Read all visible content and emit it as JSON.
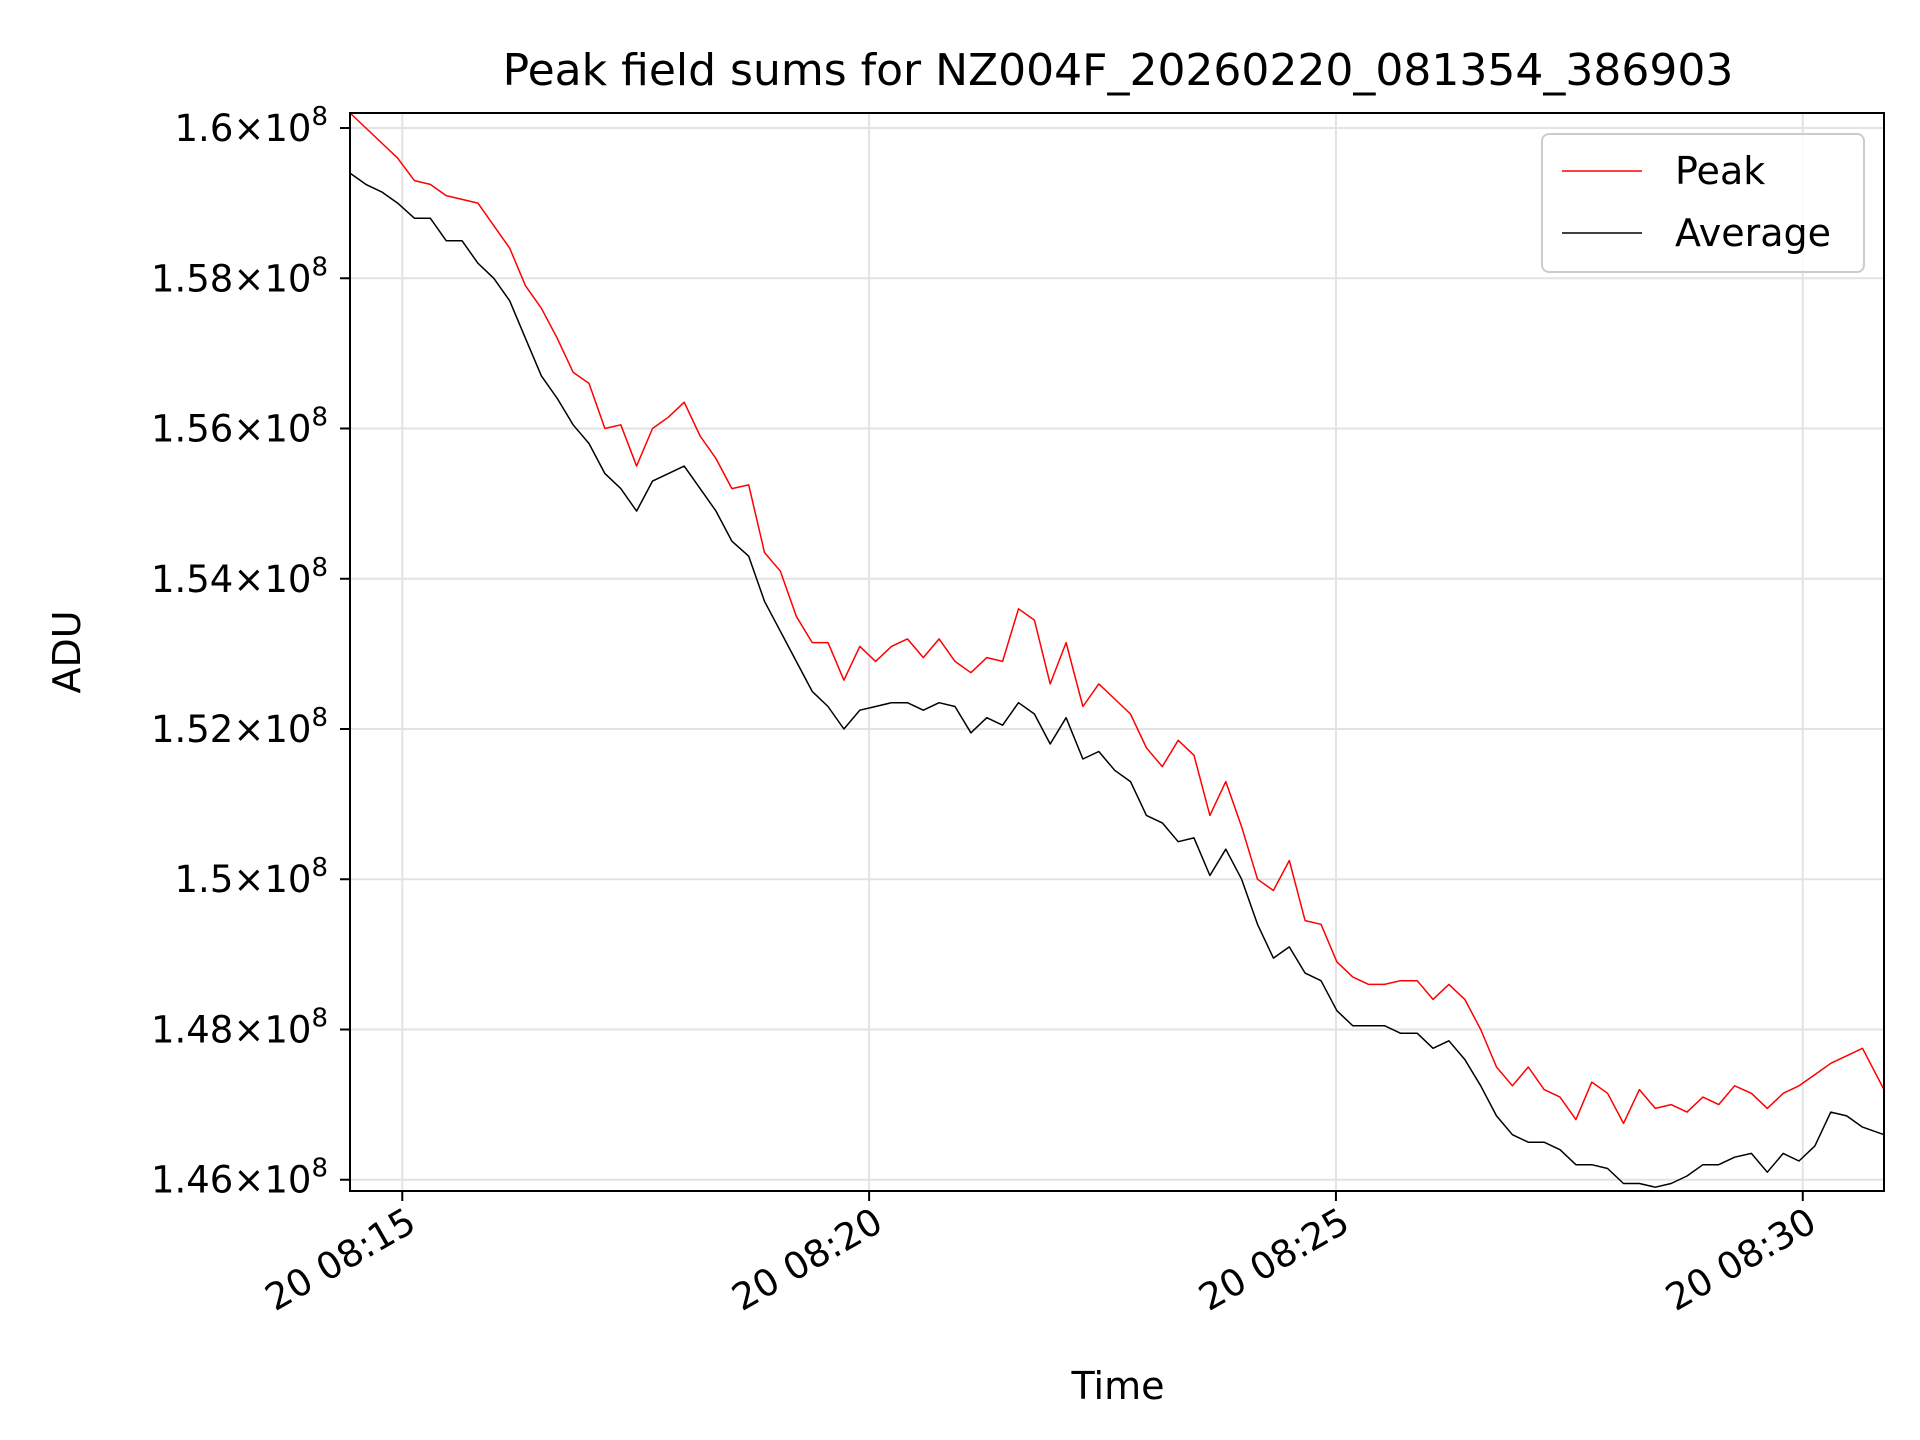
{
  "chart_data": {
    "type": "line",
    "title": "Peak field sums for NZ004F_20260220_081354_386903",
    "xlabel": "Time",
    "ylabel": "ADU",
    "xlim": [
      14.44,
      30.87
    ],
    "ylim": [
      145.85,
      160.2
    ],
    "y_unit_note": "values in units of 10^6 ADU",
    "grid": true,
    "legend_position": "top-right",
    "x_ticks": [
      {
        "value": 15,
        "label": "20 08:15"
      },
      {
        "value": 20,
        "label": "20 08:20"
      },
      {
        "value": 25,
        "label": "20 08:25"
      },
      {
        "value": 30,
        "label": "20 08:30"
      }
    ],
    "y_ticks": [
      {
        "value": 146,
        "mantissa": "1.46",
        "exponent": "8"
      },
      {
        "value": 148,
        "mantissa": "1.48",
        "exponent": "8"
      },
      {
        "value": 150,
        "mantissa": "1.5",
        "exponent": "8"
      },
      {
        "value": 152,
        "mantissa": "1.52",
        "exponent": "8"
      },
      {
        "value": 154,
        "mantissa": "1.54",
        "exponent": "8"
      },
      {
        "value": 156,
        "mantissa": "1.56",
        "exponent": "8"
      },
      {
        "value": 158,
        "mantissa": "1.58",
        "exponent": "8"
      },
      {
        "value": 160,
        "mantissa": "1.6",
        "exponent": "8"
      }
    ],
    "x": [
      14.44,
      14.61,
      14.78,
      14.95,
      15.13,
      15.3,
      15.47,
      15.64,
      15.81,
      15.98,
      16.15,
      16.32,
      16.49,
      16.66,
      16.83,
      17.0,
      17.17,
      17.34,
      17.51,
      17.68,
      17.85,
      18.02,
      18.19,
      18.36,
      18.53,
      18.71,
      18.88,
      19.05,
      19.22,
      19.39,
      19.56,
      19.73,
      19.9,
      20.07,
      20.24,
      20.41,
      20.58,
      20.75,
      20.92,
      21.09,
      21.26,
      21.43,
      21.6,
      21.77,
      21.94,
      22.11,
      22.29,
      22.46,
      22.63,
      22.8,
      22.97,
      23.14,
      23.31,
      23.48,
      23.65,
      23.82,
      23.99,
      24.16,
      24.33,
      24.5,
      24.67,
      24.84,
      25.01,
      25.18,
      25.35,
      25.52,
      25.69,
      25.87,
      26.04,
      26.21,
      26.38,
      26.55,
      26.72,
      26.89,
      27.06,
      27.23,
      27.4,
      27.57,
      27.74,
      27.91,
      28.08,
      28.25,
      28.42,
      28.59,
      28.76,
      28.93,
      29.1,
      29.27,
      29.45,
      29.62,
      29.79,
      29.96,
      30.13,
      30.3,
      30.47,
      30.64,
      30.87
    ],
    "series": [
      {
        "name": "Peak",
        "color": "#ff0000",
        "values": [
          160.2,
          160.0,
          159.8,
          159.6,
          159.3,
          159.25,
          159.1,
          159.05,
          159.0,
          158.7,
          158.4,
          157.9,
          157.6,
          157.2,
          156.75,
          156.6,
          156.0,
          156.05,
          155.5,
          156.0,
          156.15,
          156.35,
          155.9,
          155.6,
          155.2,
          155.25,
          154.35,
          154.1,
          153.5,
          153.15,
          153.15,
          152.65,
          153.1,
          152.9,
          153.1,
          153.2,
          152.95,
          153.2,
          152.9,
          152.75,
          152.95,
          152.9,
          153.6,
          153.45,
          152.6,
          153.15,
          152.3,
          152.6,
          152.4,
          152.2,
          151.75,
          151.5,
          151.85,
          151.65,
          150.85,
          151.3,
          150.7,
          150.0,
          149.85,
          150.25,
          149.45,
          149.4,
          148.9,
          148.7,
          148.6,
          148.6,
          148.65,
          148.65,
          148.4,
          148.6,
          148.4,
          148.0,
          147.5,
          147.25,
          147.5,
          147.2,
          147.1,
          146.8,
          147.3,
          147.15,
          146.75,
          147.2,
          146.95,
          147.0,
          146.9,
          147.1,
          147.0,
          147.25,
          147.15,
          146.95,
          147.15,
          147.25,
          147.4,
          147.55,
          147.65,
          147.75,
          147.2
        ]
      },
      {
        "name": "Average",
        "color": "#000000",
        "values": [
          159.4,
          159.25,
          159.15,
          159.0,
          158.8,
          158.8,
          158.5,
          158.5,
          158.2,
          158.0,
          157.7,
          157.2,
          156.7,
          156.4,
          156.05,
          155.8,
          155.4,
          155.2,
          154.9,
          155.3,
          155.4,
          155.5,
          155.2,
          154.9,
          154.5,
          154.3,
          153.7,
          153.3,
          152.9,
          152.5,
          152.3,
          152.0,
          152.25,
          152.3,
          152.35,
          152.35,
          152.25,
          152.35,
          152.3,
          151.95,
          152.15,
          152.05,
          152.35,
          152.2,
          151.8,
          152.15,
          151.6,
          151.7,
          151.45,
          151.3,
          150.85,
          150.75,
          150.5,
          150.55,
          150.05,
          150.4,
          150.0,
          149.4,
          148.95,
          149.1,
          148.75,
          148.65,
          148.25,
          148.05,
          148.05,
          148.05,
          147.95,
          147.95,
          147.75,
          147.85,
          147.6,
          147.25,
          146.85,
          146.6,
          146.5,
          146.5,
          146.4,
          146.2,
          146.2,
          146.15,
          145.95,
          145.95,
          145.9,
          145.95,
          146.05,
          146.2,
          146.2,
          146.3,
          146.35,
          146.1,
          146.35,
          146.25,
          146.45,
          146.9,
          146.85,
          146.7,
          146.6
        ]
      }
    ]
  }
}
